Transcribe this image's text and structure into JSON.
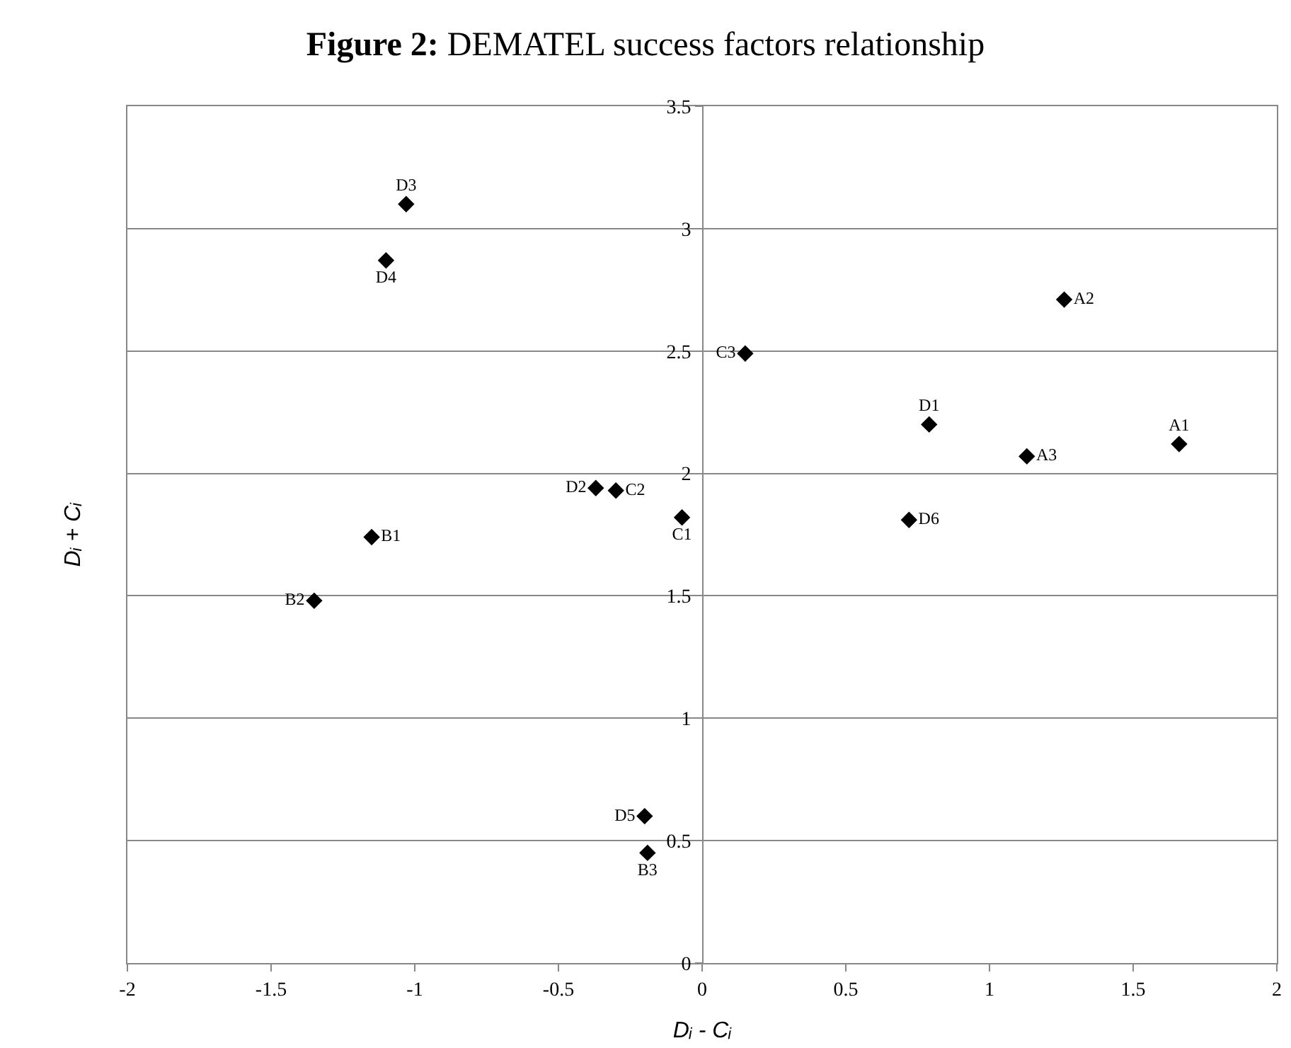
{
  "chart_data": {
    "type": "scatter",
    "title": "Figure 2: DEMATEL success factors relationship",
    "xlabel": "Dᵢ - Cᵢ",
    "ylabel": "Dᵢ + Cᵢ",
    "x": [
      -1.03,
      -1.1,
      1.26,
      0.15,
      0.79,
      1.66,
      1.13,
      -0.37,
      -0.3,
      -0.07,
      0.72,
      -1.15,
      -1.35,
      -0.2,
      -0.19
    ],
    "values": [
      3.1,
      2.87,
      2.71,
      2.49,
      2.2,
      2.12,
      2.07,
      1.94,
      1.93,
      1.82,
      1.81,
      1.74,
      1.48,
      0.6,
      0.45
    ],
    "value_labels": [
      "D3",
      "D4",
      "A2",
      "C3",
      "D1",
      "A1",
      "A3",
      "D2",
      "C2",
      "C1",
      "D6",
      "B1",
      "B2",
      "D5",
      "B3"
    ],
    "color": "#000000",
    "marker": "diamond",
    "grid": "y",
    "xlim": [
      -2,
      2
    ],
    "xticks": [
      -2,
      -1.5,
      -1,
      -0.5,
      0,
      0.5,
      1,
      1.5,
      2
    ],
    "ylim": [
      0,
      3.5
    ],
    "yticks": [
      0,
      0.5,
      1,
      1.5,
      2,
      2.5,
      3,
      3.5
    ]
  }
}
